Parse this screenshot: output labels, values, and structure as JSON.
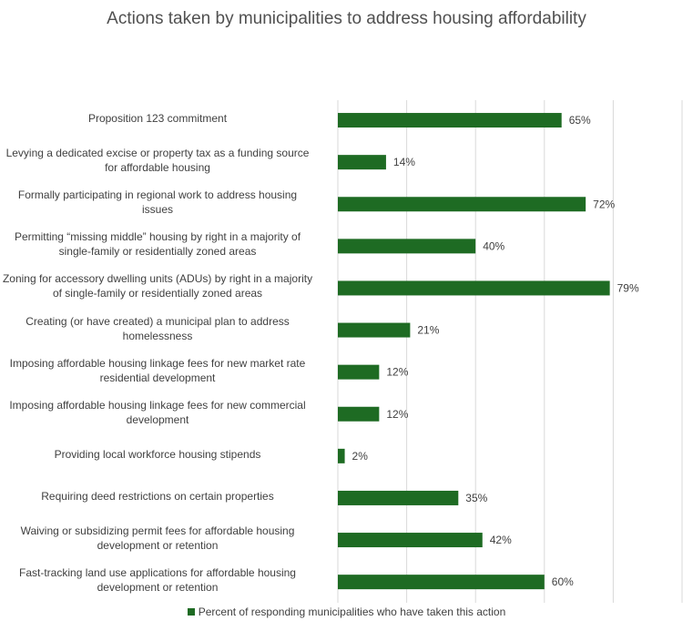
{
  "chart_data": {
    "type": "bar",
    "orientation": "horizontal",
    "title": "Actions taken by municipalities to address housing affordability",
    "categories": [
      "Proposition 123 commitment",
      "Levying a dedicated excise or property tax as a funding source for affordable housing",
      "Formally participating in regional work to address housing issues",
      "Permitting “missing middle” housing by right in a majority of single-family or residentially zoned areas",
      "Zoning for accessory dwelling units (ADUs) by right in a majority of single-family or residentially zoned areas",
      "Creating (or have created) a municipal plan to address homelessness",
      "Imposing affordable housing linkage fees for new market rate residential development",
      "Imposing affordable housing linkage fees for new commercial development",
      "Providing local workforce housing stipends",
      "Requiring deed restrictions on certain properties",
      "Waiving or subsidizing permit fees for affordable housing development or retention",
      "Fast-tracking land use applications for affordable housing development or retention"
    ],
    "category_lines": [
      [
        "Proposition 123 commitment"
      ],
      [
        "Levying a dedicated excise or property tax as a funding source",
        "for affordable housing"
      ],
      [
        "Formally participating in regional work to address housing",
        "issues"
      ],
      [
        "Permitting “missing middle” housing by right in a majority of",
        "single-family or residentially zoned areas"
      ],
      [
        "Zoning for accessory dwelling units (ADUs) by right in a majority",
        "of single-family or residentially zoned areas"
      ],
      [
        "Creating (or have created) a municipal plan to address",
        "homelessness"
      ],
      [
        "Imposing affordable housing linkage fees for new market rate",
        "residential development"
      ],
      [
        "Imposing affordable housing linkage fees for new commercial",
        "development"
      ],
      [
        "Providing local workforce housing stipends"
      ],
      [
        "Requiring deed restrictions on certain properties"
      ],
      [
        "Waiving or subsidizing permit fees for affordable housing",
        "development or retention"
      ],
      [
        "Fast-tracking land use applications for affordable housing",
        "development or retention"
      ]
    ],
    "series": [
      {
        "name": "Percent of responding municipalities who have taken this action",
        "values": [
          65,
          14,
          72,
          40,
          79,
          21,
          12,
          12,
          2,
          35,
          42,
          60
        ],
        "labels": [
          "65%",
          "14%",
          "72%",
          "40%",
          "79%",
          "21%",
          "12%",
          "12%",
          "2%",
          "35%",
          "42%",
          "60%"
        ]
      }
    ],
    "xlim": [
      0,
      100
    ],
    "grid": true,
    "legend_position": "bottom",
    "colors": {
      "bar": "#1e6b23",
      "grid": "#d9d9d9",
      "text": "#404040"
    }
  }
}
